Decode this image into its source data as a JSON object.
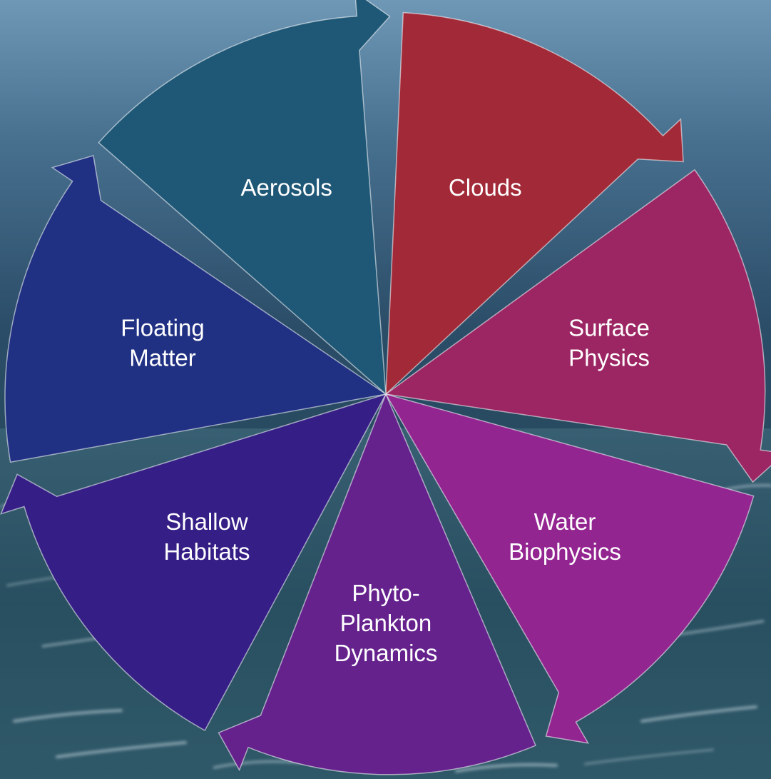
{
  "diagram": {
    "segments": [
      {
        "name": "segment-clouds",
        "lines": [
          "Clouds"
        ],
        "color": "#A22A38"
      },
      {
        "name": "segment-surface-physics",
        "lines": [
          "Surface",
          "Physics"
        ],
        "color": "#9C2563"
      },
      {
        "name": "segment-water-biophysics",
        "lines": [
          "Water",
          "Biophysics"
        ],
        "color": "#932590"
      },
      {
        "name": "segment-phyto-plankton-dynamics",
        "lines": [
          "Phyto-",
          "Plankton",
          "Dynamics"
        ],
        "color": "#65228D"
      },
      {
        "name": "segment-shallow-habitats",
        "lines": [
          "Shallow",
          "Habitats"
        ],
        "color": "#351E86"
      },
      {
        "name": "segment-floating-matter",
        "lines": [
          "Floating",
          "Matter"
        ],
        "color": "#203083"
      },
      {
        "name": "segment-aerosols",
        "lines": [
          "Aerosols"
        ],
        "color": "#1F5877"
      }
    ],
    "label_color": "#FFFFFF",
    "background": "ocean-storm"
  }
}
